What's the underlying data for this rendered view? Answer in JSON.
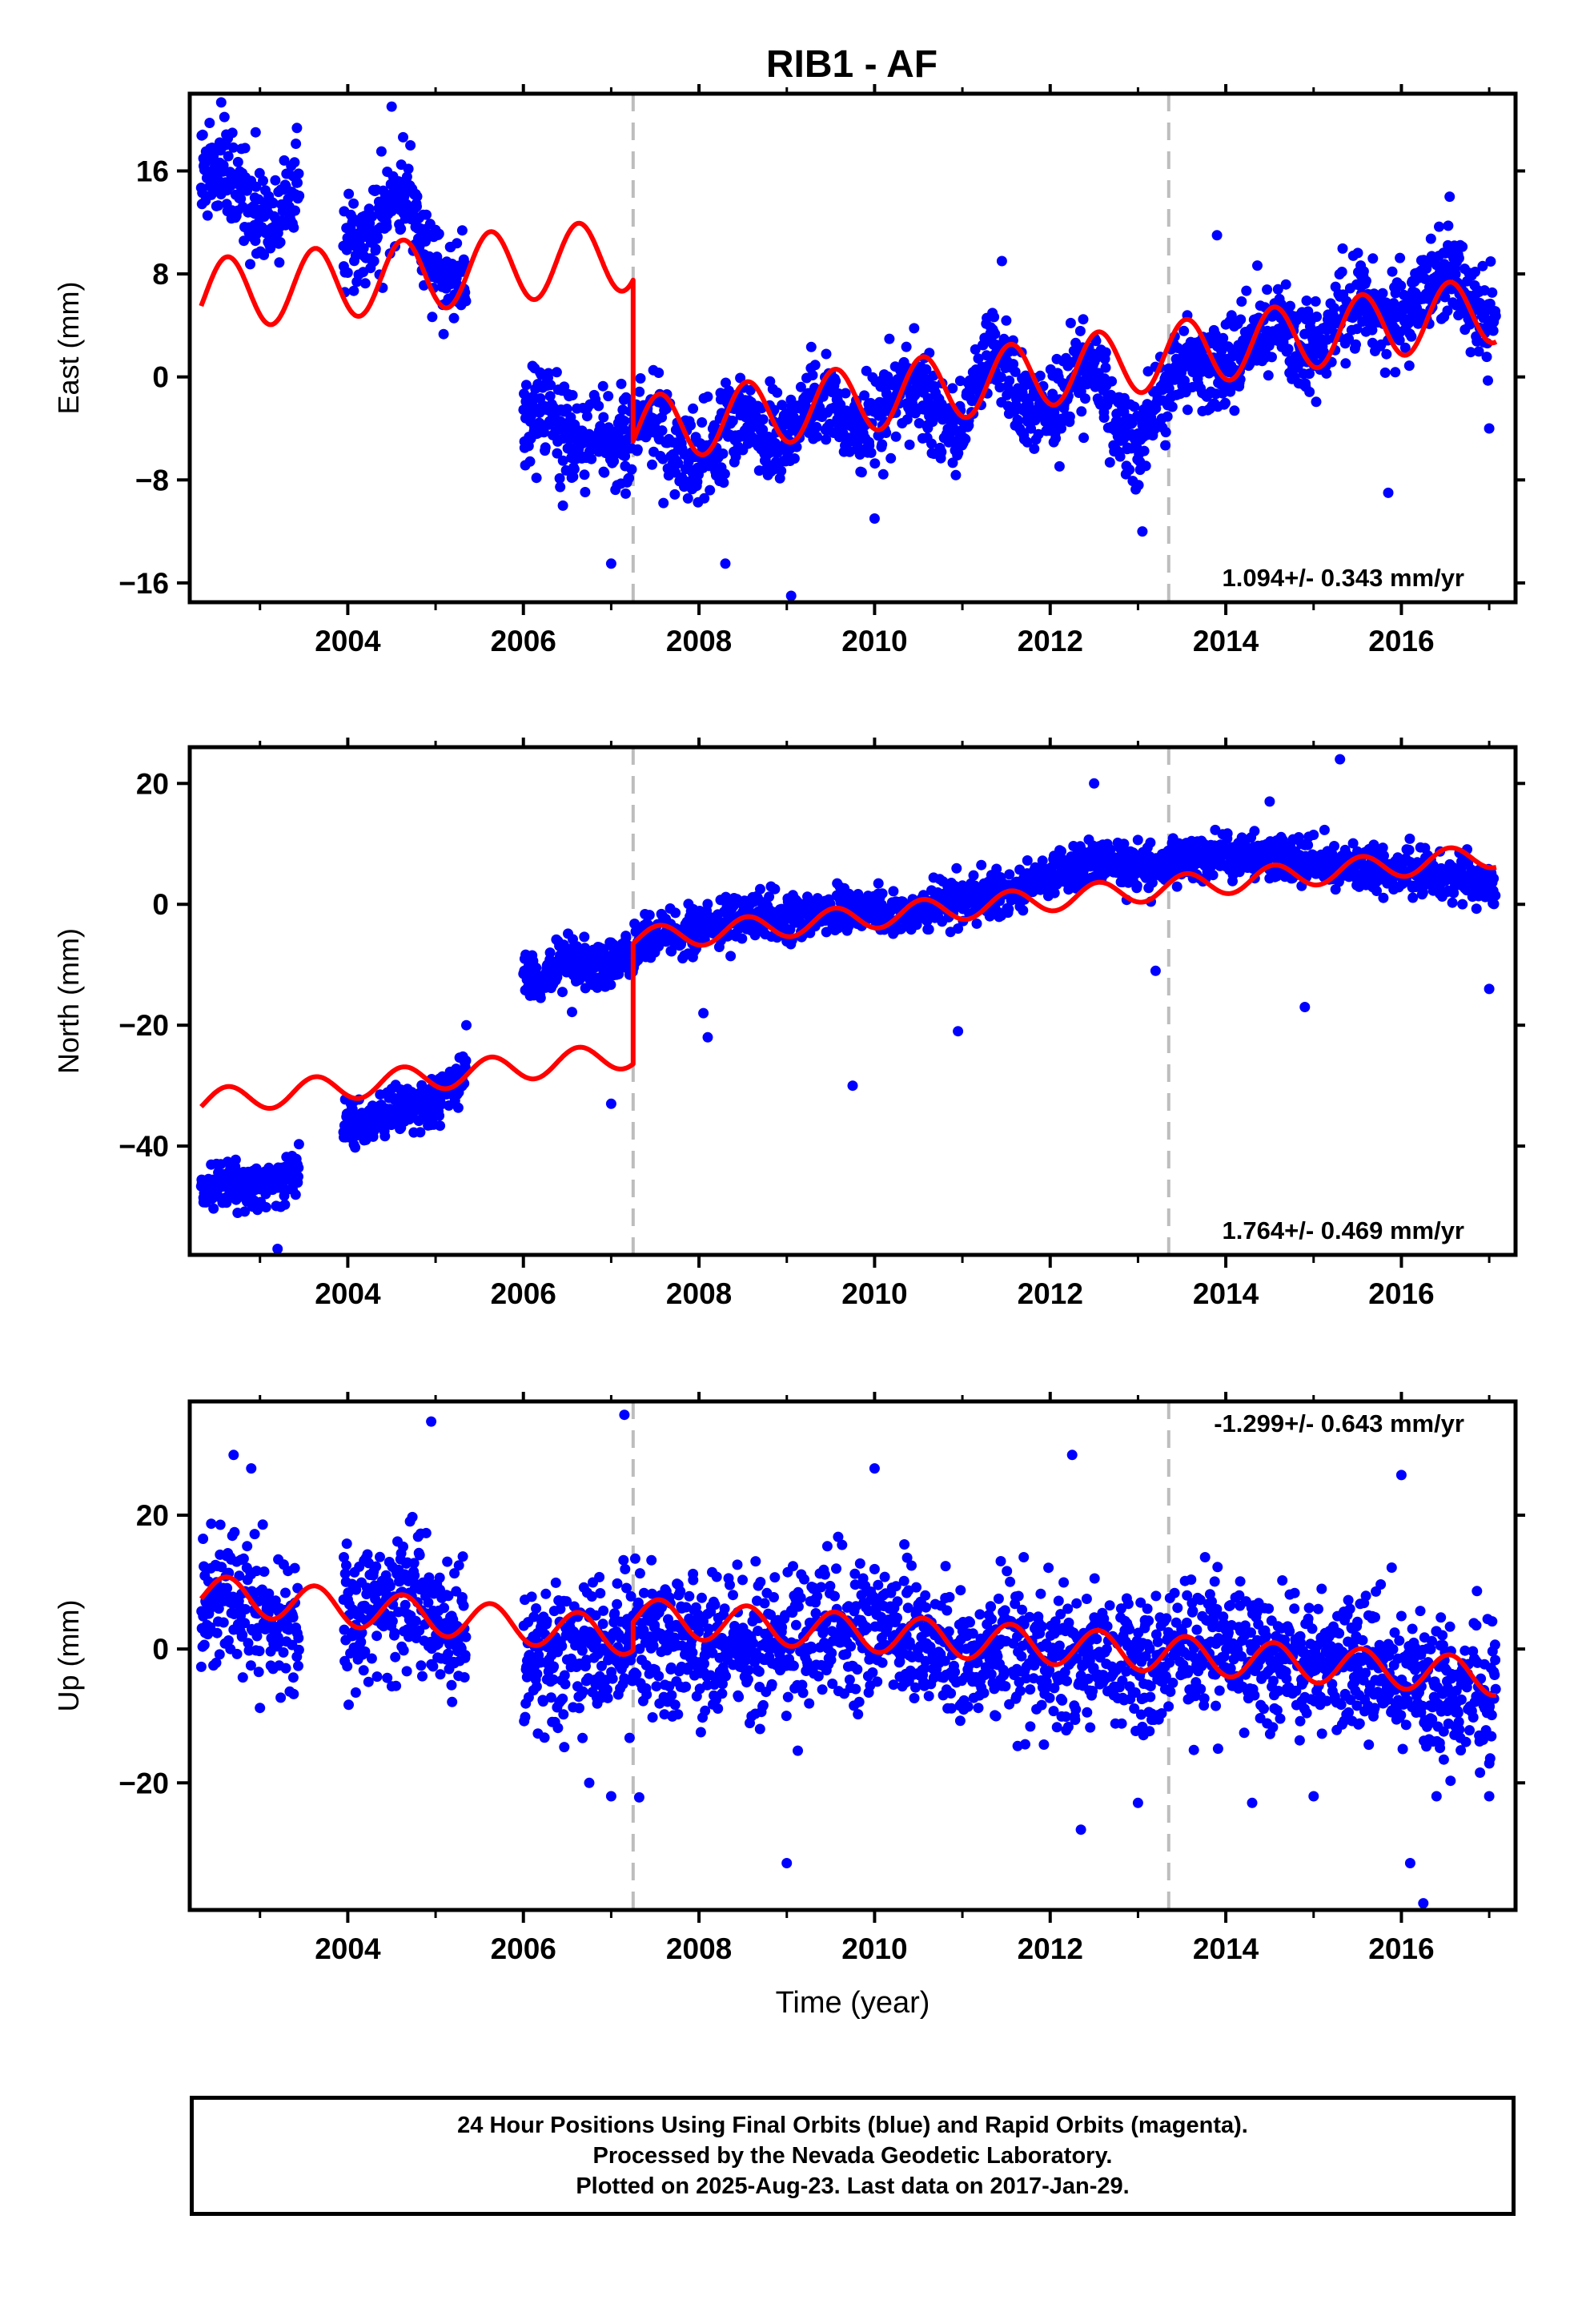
{
  "chart_data": [
    {
      "type": "scatter",
      "title": "RIB1 - AF",
      "xlabel": "",
      "ylabel": "East (mm)",
      "xlim": [
        2002.2,
        2017.3
      ],
      "ylim": [
        -17.5,
        22
      ],
      "xticks": [
        2004,
        2006,
        2008,
        2010,
        2012,
        2014,
        2016
      ],
      "xtick_labels": [
        "2004",
        "2006",
        "2008",
        "2010",
        "2012",
        "2014",
        "2016"
      ],
      "yticks": [
        -16,
        -8,
        0,
        8,
        16
      ],
      "ytick_labels": [
        "−16",
        "−8",
        "0",
        "8",
        "16"
      ],
      "offsets": [
        2007.25,
        2013.35
      ],
      "rate_label": "1.094+/- 0.343 mm/yr",
      "series": [
        {
          "color": "#0000ff",
          "role": "daily positions",
          "segments": [
            {
              "x": [
                2002.33,
                2002.6,
                2002.9,
                2003.2,
                2003.45
              ],
              "y": [
                16,
                16,
                13,
                12,
                16
              ]
            },
            {
              "x": [
                2003.95,
                2004.2,
                2004.45,
                2004.7,
                2004.95,
                2005.2,
                2005.35
              ],
              "y": [
                10,
                10,
                14,
                14,
                9,
                7,
                7
              ]
            },
            {
              "x": [
                2006.0,
                2006.3,
                2006.55,
                2006.85,
                2007.25
              ],
              "y": [
                -3,
                -2,
                -5,
                -5,
                -5
              ]
            },
            {
              "x": [
                2007.25,
                2007.5,
                2007.75,
                2008.0,
                2008.25,
                2008.5,
                2008.75,
                2009.0,
                2009.25,
                2009.5,
                2009.75,
                2010.0,
                2010.25,
                2010.5,
                2010.75,
                2011.0,
                2011.25,
                2011.5,
                2011.75,
                2012.0,
                2012.25,
                2012.5,
                2012.75,
                2013.0,
                2013.25,
                2013.35
              ],
              "y": [
                -4,
                -3,
                -6,
                -7,
                -4,
                -3,
                -5,
                -5,
                -2,
                -1,
                -4,
                -4,
                -1,
                -1,
                -3,
                -4,
                2,
                1,
                -3,
                -3,
                0,
                1,
                -4,
                -5,
                -2,
                -1
              ]
            },
            {
              "x": [
                2013.35,
                2013.6,
                2013.85,
                2014.1,
                2014.35,
                2014.6,
                2014.85,
                2015.1,
                2015.35,
                2015.6,
                2015.85,
                2016.1,
                2016.35,
                2016.6,
                2016.85,
                2017.08
              ],
              "y": [
                0,
                1,
                0,
                1,
                3,
                4,
                2,
                3,
                5,
                6,
                4,
                5,
                7,
                8,
                5,
                4
              ]
            }
          ],
          "noise_sd": 1.7,
          "outliers": [
            [
              2002.95,
              19
            ],
            [
              2004.5,
              21
            ],
            [
              2006.45,
              -10
            ],
            [
              2007.0,
              -14.5
            ],
            [
              2008.3,
              -14.5
            ],
            [
              2009.05,
              -17
            ],
            [
              2010.0,
              -11
            ],
            [
              2011.45,
              9
            ],
            [
              2013.05,
              -12
            ],
            [
              2013.9,
              11
            ],
            [
              2015.25,
              7
            ],
            [
              2015.85,
              -9
            ],
            [
              2016.55,
              14
            ],
            [
              2017.0,
              -4
            ]
          ]
        },
        {
          "color": "#ff0000",
          "role": "model fit",
          "segments": [
            {
              "x0": 2002.33,
              "x1": 2007.25,
              "y_start": 5.5,
              "y_end": 8.7,
              "amplitude": 2.8
            },
            {
              "x0": 2007.25,
              "x1": 2017.08,
              "y_start": -5.0,
              "y_end": 4.5,
              "amplitude": 2.6
            }
          ]
        }
      ]
    },
    {
      "type": "scatter",
      "title": "",
      "xlabel": "",
      "ylabel": "North (mm)",
      "xlim": [
        2002.2,
        2017.3
      ],
      "ylim": [
        -58,
        26
      ],
      "xticks": [
        2004,
        2006,
        2008,
        2010,
        2012,
        2014,
        2016
      ],
      "xtick_labels": [
        "2004",
        "2006",
        "2008",
        "2010",
        "2012",
        "2014",
        "2016"
      ],
      "yticks": [
        -40,
        -20,
        0,
        20
      ],
      "ytick_labels": [
        "−40",
        "−20",
        "0",
        "20"
      ],
      "offsets": [
        2007.25,
        2013.35
      ],
      "rate_label": "1.764+/- 0.469 mm/yr",
      "series": [
        {
          "color": "#0000ff",
          "role": "daily positions",
          "segments": [
            {
              "x": [
                2002.33,
                2002.6,
                2002.9,
                2003.2,
                2003.45
              ],
              "y": [
                -47,
                -46,
                -47,
                -46,
                -44
              ]
            },
            {
              "x": [
                2003.95,
                2004.2,
                2004.45,
                2004.7,
                2004.95,
                2005.35
              ],
              "y": [
                -37,
                -36,
                -34,
                -34,
                -33,
                -28
              ]
            },
            {
              "x": [
                2006.0,
                2006.2,
                2006.5,
                2006.8,
                2007.25
              ],
              "y": [
                -12,
                -13,
                -9,
                -10,
                -9
              ]
            },
            {
              "x": [
                2007.25,
                2007.8,
                2008.5,
                2009.2,
                2009.9,
                2010.5,
                2011.0,
                2011.5,
                2012.0,
                2012.5,
                2013.0,
                2013.35
              ],
              "y": [
                -6,
                -5,
                -2,
                -2,
                -1,
                -1,
                1,
                2,
                5,
                7,
                6,
                6
              ]
            },
            {
              "x": [
                2013.35,
                2013.8,
                2014.3,
                2014.8,
                2015.3,
                2015.8,
                2016.3,
                2016.8,
                2017.08
              ],
              "y": [
                7,
                8,
                8,
                7,
                6,
                6,
                5,
                4,
                2
              ]
            }
          ],
          "noise_sd": 1.8,
          "outliers": [
            [
              2003.2,
              -57
            ],
            [
              2005.35,
              -20
            ],
            [
              2007.0,
              -33
            ],
            [
              2008.1,
              -22
            ],
            [
              2008.05,
              -18
            ],
            [
              2009.75,
              -30
            ],
            [
              2010.95,
              -21
            ],
            [
              2012.5,
              20
            ],
            [
              2013.2,
              -11
            ],
            [
              2014.9,
              -17
            ],
            [
              2014.5,
              17
            ],
            [
              2015.3,
              24
            ],
            [
              2017.0,
              -14
            ]
          ]
        },
        {
          "color": "#ff0000",
          "role": "model fit",
          "segments": [
            {
              "x0": 2002.33,
              "x1": 2007.25,
              "y_start": -33.5,
              "y_end": -25.5,
              "amplitude": 2.2
            },
            {
              "x0": 2007.25,
              "x1": 2017.08,
              "y_start": -6.5,
              "y_end": 7.5,
              "amplitude": 2.0
            }
          ]
        }
      ]
    },
    {
      "type": "scatter",
      "title": "",
      "xlabel": "Time (year)",
      "ylabel": "Up (mm)",
      "xlim": [
        2002.2,
        2017.3
      ],
      "ylim": [
        -39,
        37
      ],
      "xticks": [
        2004,
        2006,
        2008,
        2010,
        2012,
        2014,
        2016
      ],
      "xtick_labels": [
        "2004",
        "2006",
        "2008",
        "2010",
        "2012",
        "2014",
        "2016"
      ],
      "yticks": [
        -20,
        0,
        20
      ],
      "ytick_labels": [
        "−20",
        "0",
        "20"
      ],
      "offsets": [
        2007.25,
        2013.35
      ],
      "rate_label": "-1.299+/- 0.643 mm/yr",
      "series": [
        {
          "color": "#0000ff",
          "role": "daily positions",
          "segments": [
            {
              "x": [
                2002.33,
                2002.7,
                2003.0,
                2003.45
              ],
              "y": [
                5,
                8,
                5,
                2
              ]
            },
            {
              "x": [
                2003.95,
                2004.3,
                2004.7,
                2004.95,
                2005.35
              ],
              "y": [
                4,
                6,
                7,
                6,
                2
              ]
            },
            {
              "x": [
                2006.0,
                2006.5,
                2007.25
              ],
              "y": [
                -2,
                -1,
                0
              ]
            },
            {
              "x": [
                2007.25,
                2008.0,
                2008.8,
                2009.5,
                2010.2,
                2010.6,
                2011.5,
                2012.0,
                2012.5,
                2013.0,
                2013.35
              ],
              "y": [
                2,
                0,
                0,
                3,
                3,
                0,
                0,
                -2,
                0,
                -3,
                -3
              ]
            },
            {
              "x": [
                2013.35,
                2013.8,
                2014.3,
                2014.8,
                2015.3,
                2015.8,
                2016.3,
                2016.8,
                2017.08
              ],
              "y": [
                -1,
                1,
                -1,
                -2,
                -3,
                -4,
                -6,
                -6,
                -8
              ]
            }
          ],
          "noise_sd": 5.0,
          "outliers": [
            [
              2002.7,
              29
            ],
            [
              2002.9,
              27
            ],
            [
              2004.95,
              34
            ],
            [
              2007.15,
              35
            ],
            [
              2006.75,
              -20
            ],
            [
              2007.0,
              -22
            ],
            [
              2009.0,
              -32
            ],
            [
              2010.0,
              27
            ],
            [
              2012.25,
              29
            ],
            [
              2012.35,
              -27
            ],
            [
              2013.0,
              -23
            ],
            [
              2014.3,
              -23
            ],
            [
              2015.0,
              -22
            ],
            [
              2016.0,
              26
            ],
            [
              2016.1,
              -32
            ],
            [
              2016.25,
              -38
            ],
            [
              2016.4,
              -22
            ],
            [
              2017.0,
              -22
            ]
          ]
        },
        {
          "color": "#ff0000",
          "role": "model fit",
          "segments": [
            {
              "x0": 2002.33,
              "x1": 2007.25,
              "y_start": 7.5,
              "y_end": 1.0,
              "amplitude": 2.8
            },
            {
              "x0": 2007.25,
              "x1": 2017.08,
              "y_start": 4.0,
              "y_end": -5.0,
              "amplitude": 2.8
            }
          ]
        }
      ]
    }
  ],
  "footer": {
    "line1": "24 Hour Positions Using Final Orbits (blue) and Rapid Orbits (magenta).",
    "line2": "Processed by the Nevada Geodetic Laboratory.",
    "line3": "Plotted on 2025-Aug-23. Last data on 2017-Jan-29."
  }
}
